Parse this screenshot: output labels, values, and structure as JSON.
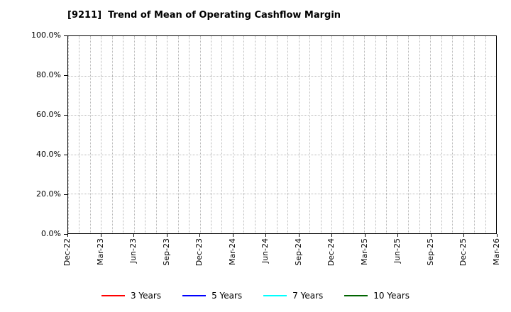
{
  "chart_data": {
    "type": "line",
    "title": "[9211]  Trend of Mean of Operating Cashflow Margin",
    "xlabel": "",
    "ylabel": "",
    "ylim": [
      0,
      100
    ],
    "y_tick_step": 20,
    "y_ticks": [
      "100.0%",
      "80.0%",
      "60.0%",
      "40.0%",
      "20.0%",
      "0.0%"
    ],
    "x_tick_labels": [
      "Dec-22",
      "Mar-23",
      "Jun-23",
      "Sep-23",
      "Dec-23",
      "Mar-24",
      "Jun-24",
      "Sep-24",
      "Dec-24",
      "Mar-25",
      "Jun-25",
      "Sep-25",
      "Dec-25",
      "Mar-26"
    ],
    "x_months_total": 39,
    "x_tick_month_step": 3,
    "grid": true,
    "grid_style": "dotted",
    "grid_color": "#b8b8b8",
    "legend_position": "bottom",
    "series": [
      {
        "name": "3 Years",
        "color": "#ff0000",
        "values": []
      },
      {
        "name": "5 Years",
        "color": "#0000ff",
        "values": []
      },
      {
        "name": "7 Years",
        "color": "#00ffff",
        "values": []
      },
      {
        "name": "10 Years",
        "color": "#006400",
        "values": []
      }
    ]
  }
}
